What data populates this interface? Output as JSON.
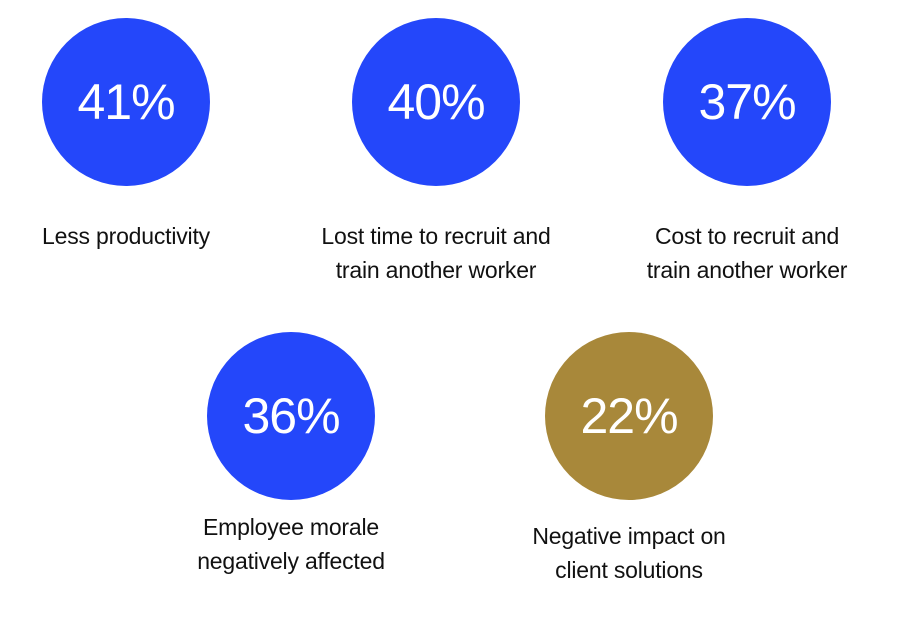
{
  "stats": [
    {
      "value": "41%",
      "label_lines": [
        "Less productivity"
      ],
      "color": "#2447FA"
    },
    {
      "value": "40%",
      "label_lines": [
        "Lost time to recruit and",
        "train another worker"
      ],
      "color": "#2447FA"
    },
    {
      "value": "37%",
      "label_lines": [
        "Cost to recruit and",
        "train another worker"
      ],
      "color": "#2447FA"
    },
    {
      "value": "36%",
      "label_lines": [
        "Employee morale",
        "negatively affected"
      ],
      "color": "#2447FA"
    },
    {
      "value": "22%",
      "label_lines": [
        "Negative impact on",
        "client solutions"
      ],
      "color": "#A8883A"
    }
  ]
}
